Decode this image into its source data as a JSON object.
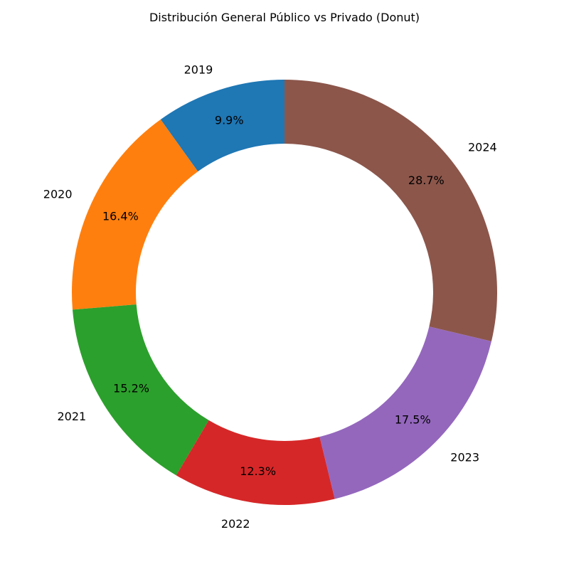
{
  "chart_data": {
    "type": "pie",
    "variant": "donut",
    "title": "Distribución General Público vs Privado (Donut)",
    "categories": [
      "2019",
      "2020",
      "2021",
      "2022",
      "2023",
      "2024"
    ],
    "values": [
      9.9,
      16.4,
      15.2,
      12.3,
      17.5,
      28.7
    ],
    "value_labels": [
      "9.9%",
      "16.4%",
      "15.2%",
      "12.3%",
      "17.5%",
      "28.7%"
    ],
    "colors": [
      "#1f77b4",
      "#ff7f0e",
      "#2ca02c",
      "#d62728",
      "#9467bd",
      "#8c564b"
    ],
    "start_angle_deg": 90,
    "direction": "counterclockwise",
    "legend": "none"
  }
}
